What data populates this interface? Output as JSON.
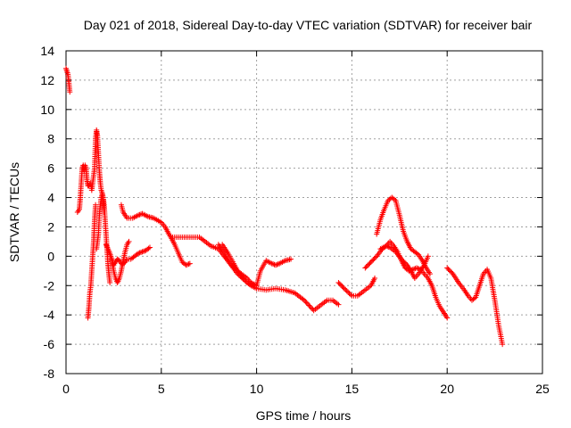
{
  "chart_data": {
    "type": "scatter",
    "title": "Day 021 of 2018, Sidereal Day-to-day VTEC variation (SDTVAR) for receiver bair",
    "xlabel": "GPS time / hours",
    "ylabel": "SDTVAR / TECUs",
    "xlim": [
      0,
      25
    ],
    "ylim": [
      -8,
      14
    ],
    "xticks": [
      0,
      5,
      10,
      15,
      20,
      25
    ],
    "yticks": [
      -8,
      -6,
      -4,
      -2,
      0,
      2,
      4,
      6,
      8,
      10,
      12,
      14
    ],
    "grid": true,
    "marker": "+",
    "color": "#ff0000",
    "series": [
      {
        "name": "s1",
        "x": [
          0.0,
          0.1,
          0.15,
          0.2
        ],
        "y": [
          12.8,
          12.4,
          11.8,
          11.2
        ]
      },
      {
        "name": "s2",
        "x": [
          0.6,
          0.7,
          0.75,
          0.8,
          0.85,
          0.9,
          0.95,
          1.0,
          1.05,
          1.1,
          1.15,
          1.2,
          1.3,
          1.35,
          1.4,
          1.45,
          1.5,
          1.55,
          1.6,
          1.65,
          1.7,
          1.75,
          1.8,
          1.85,
          1.9,
          1.95,
          2.0,
          2.05,
          2.1,
          2.15,
          2.2,
          2.25,
          2.3
        ],
        "y": [
          3.0,
          3.2,
          4.0,
          5.0,
          6.0,
          6.2,
          5.8,
          6.2,
          6.0,
          5.2,
          4.8,
          4.8,
          5.0,
          4.5,
          5.0,
          5.5,
          6.0,
          8.0,
          8.6,
          8.2,
          7.0,
          5.8,
          5.0,
          4.5,
          4.3,
          4.0,
          3.5,
          2.5,
          1.5,
          0.5,
          -0.5,
          -1.2,
          -1.8
        ]
      },
      {
        "name": "s3",
        "x": [
          1.15,
          1.2,
          1.25,
          1.3,
          1.35,
          1.4,
          1.45,
          1.5,
          1.55
        ],
        "y": [
          -4.2,
          -3.5,
          -2.5,
          -2.0,
          -1.0,
          0.0,
          1.0,
          2.5,
          3.5
        ]
      },
      {
        "name": "s4",
        "x": [
          1.6,
          1.7,
          1.75,
          1.8,
          1.85,
          1.9,
          1.95,
          2.0
        ],
        "y": [
          0.5,
          1.5,
          2.8,
          3.5,
          4.0,
          4.2,
          3.8,
          3.0
        ]
      },
      {
        "name": "s5",
        "x": [
          2.1,
          2.2,
          2.3,
          2.4,
          2.5,
          2.6,
          2.7,
          2.8,
          2.9,
          3.0,
          3.1,
          3.2,
          3.4,
          3.6,
          3.8,
          4.0,
          4.2,
          4.4
        ],
        "y": [
          0.8,
          0.5,
          0.2,
          -0.2,
          -0.6,
          -0.4,
          -0.2,
          -0.3,
          -0.5,
          -0.5,
          -0.4,
          -0.2,
          -0.2,
          0.0,
          0.2,
          0.3,
          0.4,
          0.6
        ]
      },
      {
        "name": "s6",
        "x": [
          2.4,
          2.5,
          2.6,
          2.7,
          2.8,
          2.9,
          3.0,
          3.1,
          3.2,
          3.3
        ],
        "y": [
          -0.3,
          -1.0,
          -1.5,
          -1.8,
          -1.5,
          -1.0,
          -0.3,
          0.3,
          0.8,
          1.0
        ]
      },
      {
        "name": "s7",
        "x": [
          2.9,
          3.0,
          3.2,
          3.5,
          3.8,
          4.0,
          4.3,
          4.6,
          5.0,
          5.2,
          5.4,
          5.5,
          5.8,
          6.0,
          6.5,
          7.0,
          7.3,
          7.6,
          8.0,
          8.3,
          8.6,
          9.0,
          9.3,
          9.5,
          9.7,
          10.0,
          10.5,
          11.0,
          11.5,
          12.0,
          12.5,
          13.0,
          13.4,
          13.7,
          14.0,
          14.3
        ],
        "y": [
          3.5,
          3.0,
          2.6,
          2.6,
          2.8,
          2.9,
          2.7,
          2.6,
          2.3,
          2.0,
          1.5,
          1.3,
          1.3,
          1.3,
          1.3,
          1.3,
          1.0,
          0.7,
          0.5,
          0.0,
          -0.5,
          -1.0,
          -1.5,
          -1.8,
          -2.0,
          -2.2,
          -2.3,
          -2.2,
          -2.3,
          -2.5,
          -3.0,
          -3.7,
          -3.3,
          -3.0,
          -3.0,
          -3.3
        ]
      },
      {
        "name": "s8",
        "x": [
          5.5,
          5.7,
          5.9,
          6.1,
          6.3,
          6.5
        ],
        "y": [
          1.3,
          0.8,
          0.2,
          -0.4,
          -0.6,
          -0.5
        ]
      },
      {
        "name": "s9",
        "x": [
          8.0,
          8.3,
          8.6,
          9.0,
          9.5,
          10.0,
          10.2,
          10.5,
          10.8,
          11.0,
          11.2,
          11.5,
          11.8
        ],
        "y": [
          0.8,
          0.2,
          -0.5,
          -1.2,
          -1.8,
          -2.0,
          -1.0,
          -0.3,
          -0.5,
          -0.6,
          -0.5,
          -0.3,
          -0.2
        ]
      },
      {
        "name": "s10",
        "x": [
          8.2,
          8.5,
          8.8,
          9.0,
          9.2,
          9.5,
          9.7,
          10.0
        ],
        "y": [
          0.8,
          0.2,
          -0.5,
          -1.0,
          -1.2,
          -1.5,
          -1.8,
          -2.0
        ]
      },
      {
        "name": "s11",
        "x": [
          14.3,
          14.6,
          15.0,
          15.3,
          15.6,
          16.0,
          16.2
        ],
        "y": [
          -1.8,
          -2.2,
          -2.7,
          -2.7,
          -2.4,
          -2.0,
          -1.5
        ]
      },
      {
        "name": "s12",
        "x": [
          15.7,
          16.0,
          16.3,
          16.6,
          16.8,
          17.0,
          17.2,
          17.4,
          17.6,
          17.8,
          18.0,
          18.2,
          18.4,
          18.6,
          18.8,
          19.0,
          19.2,
          19.4,
          19.6,
          19.8,
          20.0
        ],
        "y": [
          -0.8,
          -0.4,
          0.0,
          0.5,
          0.7,
          1.0,
          0.7,
          0.3,
          -0.3,
          -0.8,
          -1.0,
          -0.9,
          -0.8,
          -0.9,
          -1.2,
          -1.5,
          -2.0,
          -2.8,
          -3.4,
          -3.8,
          -4.2
        ]
      },
      {
        "name": "s13",
        "x": [
          16.3,
          16.5,
          16.7,
          16.9,
          17.1,
          17.3,
          17.5,
          17.7,
          17.9,
          18.1,
          18.3,
          18.5,
          18.7,
          18.9,
          19.1
        ],
        "y": [
          1.5,
          2.5,
          3.2,
          3.8,
          4.0,
          3.8,
          2.8,
          1.7,
          1.0,
          0.5,
          0.3,
          0.1,
          -0.3,
          -0.8,
          -1.2
        ]
      },
      {
        "name": "s14",
        "x": [
          16.5,
          16.8,
          17.0,
          17.3,
          17.6,
          17.9,
          18.1,
          18.3,
          18.5,
          18.8,
          19.0
        ],
        "y": [
          0.5,
          0.7,
          0.6,
          0.3,
          -0.2,
          -0.6,
          -1.0,
          -1.5,
          -1.2,
          -0.6,
          0.0
        ]
      },
      {
        "name": "s15",
        "x": [
          20.0,
          20.3,
          20.6,
          20.9,
          21.1,
          21.3,
          21.5,
          21.7,
          21.9,
          22.1,
          22.3,
          22.5,
          22.7,
          22.9
        ],
        "y": [
          -0.8,
          -1.2,
          -1.8,
          -2.3,
          -2.7,
          -3.0,
          -2.8,
          -2.0,
          -1.2,
          -0.9,
          -1.5,
          -3.0,
          -4.7,
          -6.0
        ]
      }
    ]
  }
}
